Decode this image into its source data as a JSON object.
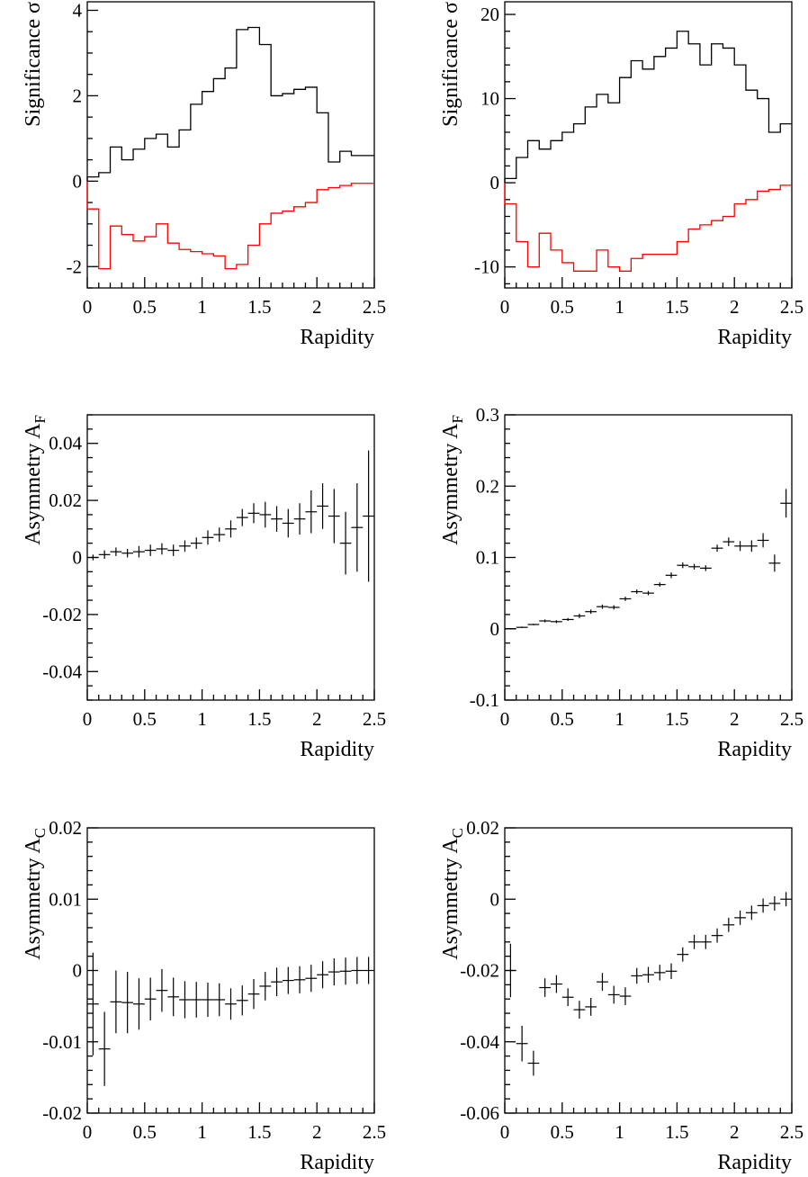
{
  "chart_data": [
    {
      "id": "p1",
      "type": "step",
      "xlabel": "Rapidity",
      "ylabel": "Significance σ",
      "xlim": [
        0,
        2.5
      ],
      "ylim": [
        -2.5,
        4.2
      ],
      "xticks": [
        {
          "v": 0,
          "t": "0"
        },
        {
          "v": 0.5,
          "t": "0.5"
        },
        {
          "v": 1,
          "t": "1"
        },
        {
          "v": 1.5,
          "t": "1.5"
        },
        {
          "v": 2,
          "t": "2"
        },
        {
          "v": 2.5,
          "t": "2.5"
        }
      ],
      "yticks": [
        {
          "v": -2,
          "t": "-2"
        },
        {
          "v": 0,
          "t": "0"
        },
        {
          "v": 2,
          "t": "2"
        },
        {
          "v": 4,
          "t": "4"
        }
      ],
      "y_minor": 0.5,
      "bin_edges": [
        0,
        0.1,
        0.2,
        0.3,
        0.4,
        0.5,
        0.6,
        0.7,
        0.8,
        0.9,
        1.0,
        1.1,
        1.2,
        1.3,
        1.4,
        1.5,
        1.6,
        1.7,
        1.8,
        1.9,
        2.0,
        2.1,
        2.2,
        2.3,
        2.4,
        2.5
      ],
      "series": [
        {
          "color": "#000000",
          "values": [
            0.1,
            0.2,
            0.8,
            0.5,
            0.75,
            1.0,
            1.1,
            0.8,
            1.2,
            1.8,
            2.1,
            2.4,
            2.65,
            3.55,
            3.6,
            3.2,
            2.0,
            2.05,
            2.15,
            2.2,
            1.6,
            0.45,
            0.7,
            0.6,
            0.6
          ]
        },
        {
          "color": "#ff0000",
          "values": [
            -0.65,
            -2.05,
            -1.05,
            -1.25,
            -1.4,
            -1.3,
            -1.0,
            -1.45,
            -1.6,
            -1.65,
            -1.7,
            -1.75,
            -2.05,
            -1.95,
            -1.5,
            -1.0,
            -0.75,
            -0.7,
            -0.6,
            -0.5,
            -0.2,
            -0.15,
            -0.1,
            -0.05,
            -0.05
          ]
        }
      ]
    },
    {
      "id": "p2",
      "type": "step",
      "xlabel": "Rapidity",
      "ylabel": "Significance σ",
      "xlim": [
        0,
        2.5
      ],
      "ylim": [
        -12.5,
        21.5
      ],
      "xticks": [
        {
          "v": 0,
          "t": "0"
        },
        {
          "v": 0.5,
          "t": "0.5"
        },
        {
          "v": 1,
          "t": "1"
        },
        {
          "v": 1.5,
          "t": "1.5"
        },
        {
          "v": 2,
          "t": "2"
        },
        {
          "v": 2.5,
          "t": "2.5"
        }
      ],
      "yticks": [
        {
          "v": -10,
          "t": "-10"
        },
        {
          "v": 0,
          "t": "0"
        },
        {
          "v": 10,
          "t": "10"
        },
        {
          "v": 20,
          "t": "20"
        }
      ],
      "y_minor": 2,
      "bin_edges": [
        0,
        0.1,
        0.2,
        0.3,
        0.4,
        0.5,
        0.6,
        0.7,
        0.8,
        0.9,
        1.0,
        1.1,
        1.2,
        1.3,
        1.4,
        1.5,
        1.6,
        1.7,
        1.8,
        1.9,
        2.0,
        2.1,
        2.2,
        2.3,
        2.4,
        2.5
      ],
      "series": [
        {
          "color": "#000000",
          "values": [
            0.5,
            3.0,
            5.0,
            4.0,
            5.0,
            6.0,
            7.0,
            9.0,
            10.5,
            9.5,
            12.5,
            14.5,
            13.5,
            15.0,
            16.0,
            18.0,
            16.5,
            14.0,
            16.5,
            16.0,
            14.0,
            11.0,
            10.0,
            6.0,
            7.0
          ]
        },
        {
          "color": "#ff0000",
          "values": [
            -2.5,
            -7.0,
            -10.0,
            -6.0,
            -8.0,
            -9.5,
            -10.5,
            -10.5,
            -8.0,
            -10.0,
            -10.5,
            -9.0,
            -8.5,
            -8.5,
            -8.5,
            -7.0,
            -5.5,
            -5.0,
            -4.5,
            -4.0,
            -2.5,
            -2.0,
            -1.0,
            -0.8,
            -0.3
          ]
        }
      ]
    },
    {
      "id": "p3",
      "type": "errorbar",
      "xlabel": "Rapidity",
      "ylabel": "Asymmetry A",
      "ylabel_sub": "F",
      "xlim": [
        0,
        2.5
      ],
      "ylim": [
        -0.05,
        0.05
      ],
      "xticks": [
        {
          "v": 0,
          "t": "0"
        },
        {
          "v": 0.5,
          "t": "0.5"
        },
        {
          "v": 1,
          "t": "1"
        },
        {
          "v": 1.5,
          "t": "1.5"
        },
        {
          "v": 2,
          "t": "2"
        },
        {
          "v": 2.5,
          "t": "2.5"
        }
      ],
      "yticks": [
        {
          "v": -0.04,
          "t": "-0.04"
        },
        {
          "v": -0.02,
          "t": "-0.02"
        },
        {
          "v": 0,
          "t": "0"
        },
        {
          "v": 0.02,
          "t": "0.02"
        },
        {
          "v": 0.04,
          "t": "0.04"
        }
      ],
      "y_minor": 0.005,
      "points": [
        {
          "x": 0.05,
          "y": 0.0,
          "err": 0.001
        },
        {
          "x": 0.15,
          "y": 0.001,
          "err": 0.0015
        },
        {
          "x": 0.25,
          "y": 0.002,
          "err": 0.0015
        },
        {
          "x": 0.35,
          "y": 0.0015,
          "err": 0.0015
        },
        {
          "x": 0.45,
          "y": 0.002,
          "err": 0.002
        },
        {
          "x": 0.55,
          "y": 0.0025,
          "err": 0.002
        },
        {
          "x": 0.65,
          "y": 0.003,
          "err": 0.002
        },
        {
          "x": 0.75,
          "y": 0.0025,
          "err": 0.002
        },
        {
          "x": 0.85,
          "y": 0.004,
          "err": 0.002
        },
        {
          "x": 0.95,
          "y": 0.005,
          "err": 0.002
        },
        {
          "x": 1.05,
          "y": 0.007,
          "err": 0.0025
        },
        {
          "x": 1.15,
          "y": 0.008,
          "err": 0.0025
        },
        {
          "x": 1.25,
          "y": 0.01,
          "err": 0.003
        },
        {
          "x": 1.35,
          "y": 0.014,
          "err": 0.003
        },
        {
          "x": 1.45,
          "y": 0.0155,
          "err": 0.0035
        },
        {
          "x": 1.55,
          "y": 0.015,
          "err": 0.0045
        },
        {
          "x": 1.65,
          "y": 0.0135,
          "err": 0.0045
        },
        {
          "x": 1.75,
          "y": 0.012,
          "err": 0.005
        },
        {
          "x": 1.85,
          "y": 0.0135,
          "err": 0.0055
        },
        {
          "x": 1.95,
          "y": 0.016,
          "err": 0.0075
        },
        {
          "x": 2.05,
          "y": 0.018,
          "err": 0.008
        },
        {
          "x": 2.15,
          "y": 0.0145,
          "err": 0.0095
        },
        {
          "x": 2.25,
          "y": 0.005,
          "err": 0.011
        },
        {
          "x": 2.35,
          "y": 0.0105,
          "err": 0.0155
        },
        {
          "x": 2.45,
          "y": 0.0145,
          "err": 0.023
        }
      ]
    },
    {
      "id": "p4",
      "type": "errorbar",
      "xlabel": "Rapidity",
      "ylabel": "Asymmetry A",
      "ylabel_sub": "F",
      "xlim": [
        0,
        2.5
      ],
      "ylim": [
        -0.1,
        0.3
      ],
      "xticks": [
        {
          "v": 0,
          "t": "0"
        },
        {
          "v": 0.5,
          "t": "0.5"
        },
        {
          "v": 1,
          "t": "1"
        },
        {
          "v": 1.5,
          "t": "1.5"
        },
        {
          "v": 2,
          "t": "2"
        },
        {
          "v": 2.5,
          "t": "2.5"
        }
      ],
      "yticks": [
        {
          "v": -0.1,
          "t": "-0.1"
        },
        {
          "v": 0,
          "t": "0"
        },
        {
          "v": 0.1,
          "t": "0.1"
        },
        {
          "v": 0.2,
          "t": "0.2"
        },
        {
          "v": 0.3,
          "t": "0.3"
        }
      ],
      "y_minor": 0.02,
      "points": [
        {
          "x": 0.05,
          "y": 0.0,
          "err": 0.001
        },
        {
          "x": 0.15,
          "y": 0.002,
          "err": 0.001
        },
        {
          "x": 0.25,
          "y": 0.006,
          "err": 0.001
        },
        {
          "x": 0.35,
          "y": 0.011,
          "err": 0.002
        },
        {
          "x": 0.45,
          "y": 0.01,
          "err": 0.002
        },
        {
          "x": 0.55,
          "y": 0.013,
          "err": 0.002
        },
        {
          "x": 0.65,
          "y": 0.018,
          "err": 0.003
        },
        {
          "x": 0.75,
          "y": 0.024,
          "err": 0.003
        },
        {
          "x": 0.85,
          "y": 0.031,
          "err": 0.003
        },
        {
          "x": 0.95,
          "y": 0.03,
          "err": 0.003
        },
        {
          "x": 1.05,
          "y": 0.042,
          "err": 0.003
        },
        {
          "x": 1.15,
          "y": 0.052,
          "err": 0.003
        },
        {
          "x": 1.25,
          "y": 0.05,
          "err": 0.003
        },
        {
          "x": 1.35,
          "y": 0.062,
          "err": 0.003
        },
        {
          "x": 1.45,
          "y": 0.075,
          "err": 0.004
        },
        {
          "x": 1.55,
          "y": 0.089,
          "err": 0.004
        },
        {
          "x": 1.65,
          "y": 0.087,
          "err": 0.004
        },
        {
          "x": 1.75,
          "y": 0.085,
          "err": 0.004
        },
        {
          "x": 1.85,
          "y": 0.113,
          "err": 0.005
        },
        {
          "x": 1.95,
          "y": 0.122,
          "err": 0.006
        },
        {
          "x": 2.05,
          "y": 0.116,
          "err": 0.007
        },
        {
          "x": 2.15,
          "y": 0.116,
          "err": 0.008
        },
        {
          "x": 2.25,
          "y": 0.124,
          "err": 0.01
        },
        {
          "x": 2.35,
          "y": 0.092,
          "err": 0.012
        },
        {
          "x": 2.45,
          "y": 0.176,
          "err": 0.02
        }
      ]
    },
    {
      "id": "p5",
      "type": "errorbar",
      "xlabel": "Rapidity",
      "ylabel": "Asymmetry A",
      "ylabel_sub": "C",
      "xlim": [
        0,
        2.5
      ],
      "ylim": [
        -0.02,
        0.02
      ],
      "xticks": [
        {
          "v": 0,
          "t": "0"
        },
        {
          "v": 0.5,
          "t": "0.5"
        },
        {
          "v": 1,
          "t": "1"
        },
        {
          "v": 1.5,
          "t": "1.5"
        },
        {
          "v": 2,
          "t": "2"
        },
        {
          "v": 2.5,
          "t": "2.5"
        }
      ],
      "yticks": [
        {
          "v": -0.02,
          "t": "-0.02"
        },
        {
          "v": -0.01,
          "t": "-0.01"
        },
        {
          "v": 0,
          "t": "0"
        },
        {
          "v": 0.01,
          "t": "0.01"
        },
        {
          "v": 0.02,
          "t": "0.02"
        }
      ],
      "y_minor": 0.002,
      "points": [
        {
          "x": 0.05,
          "y": -0.0047,
          "err": 0.0072
        },
        {
          "x": 0.15,
          "y": -0.011,
          "err": 0.0052
        },
        {
          "x": 0.25,
          "y": -0.0044,
          "err": 0.0044
        },
        {
          "x": 0.35,
          "y": -0.0045,
          "err": 0.0043
        },
        {
          "x": 0.45,
          "y": -0.0047,
          "err": 0.0036
        },
        {
          "x": 0.55,
          "y": -0.004,
          "err": 0.003
        },
        {
          "x": 0.65,
          "y": -0.0028,
          "err": 0.003
        },
        {
          "x": 0.75,
          "y": -0.0037,
          "err": 0.0027
        },
        {
          "x": 0.85,
          "y": -0.0041,
          "err": 0.0026
        },
        {
          "x": 0.95,
          "y": -0.0041,
          "err": 0.0025
        },
        {
          "x": 1.05,
          "y": -0.0041,
          "err": 0.0024
        },
        {
          "x": 1.15,
          "y": -0.0041,
          "err": 0.0023
        },
        {
          "x": 1.25,
          "y": -0.0047,
          "err": 0.0022
        },
        {
          "x": 1.35,
          "y": -0.0042,
          "err": 0.0021
        },
        {
          "x": 1.45,
          "y": -0.0033,
          "err": 0.0021
        },
        {
          "x": 1.55,
          "y": -0.0022,
          "err": 0.002
        },
        {
          "x": 1.65,
          "y": -0.0016,
          "err": 0.002
        },
        {
          "x": 1.75,
          "y": -0.0014,
          "err": 0.0019
        },
        {
          "x": 1.85,
          "y": -0.0013,
          "err": 0.0019
        },
        {
          "x": 1.95,
          "y": -0.0011,
          "err": 0.0019
        },
        {
          "x": 2.05,
          "y": -0.0006,
          "err": 0.0019
        },
        {
          "x": 2.15,
          "y": -0.0002,
          "err": 0.0019
        },
        {
          "x": 2.25,
          "y": -0.0001,
          "err": 0.0019
        },
        {
          "x": 2.35,
          "y": 0.0,
          "err": 0.0019
        },
        {
          "x": 2.45,
          "y": 0.0,
          "err": 0.0019
        }
      ]
    },
    {
      "id": "p6",
      "type": "errorbar",
      "xlabel": "Rapidity",
      "ylabel": "Asymmetry A",
      "ylabel_sub": "C",
      "xlim": [
        0,
        2.5
      ],
      "ylim": [
        -0.06,
        0.02
      ],
      "xticks": [
        {
          "v": 0,
          "t": "0"
        },
        {
          "v": 0.5,
          "t": "0.5"
        },
        {
          "v": 1,
          "t": "1"
        },
        {
          "v": 1.5,
          "t": "1.5"
        },
        {
          "v": 2,
          "t": "2"
        },
        {
          "v": 2.5,
          "t": "2.5"
        }
      ],
      "yticks": [
        {
          "v": -0.06,
          "t": "-0.06"
        },
        {
          "v": -0.04,
          "t": "-0.04"
        },
        {
          "v": -0.02,
          "t": "-0.02"
        },
        {
          "v": 0,
          "t": "0"
        },
        {
          "v": 0.02,
          "t": "0.02"
        }
      ],
      "y_minor": 0.004,
      "points": [
        {
          "x": 0.05,
          "y": -0.02,
          "err": 0.0075
        },
        {
          "x": 0.15,
          "y": -0.0405,
          "err": 0.005
        },
        {
          "x": 0.25,
          "y": -0.046,
          "err": 0.0035
        },
        {
          "x": 0.35,
          "y": -0.0248,
          "err": 0.0026
        },
        {
          "x": 0.45,
          "y": -0.0238,
          "err": 0.0025
        },
        {
          "x": 0.55,
          "y": -0.0275,
          "err": 0.0025
        },
        {
          "x": 0.65,
          "y": -0.031,
          "err": 0.0025
        },
        {
          "x": 0.75,
          "y": -0.0302,
          "err": 0.0025
        },
        {
          "x": 0.85,
          "y": -0.0232,
          "err": 0.0025
        },
        {
          "x": 0.95,
          "y": -0.0268,
          "err": 0.0025
        },
        {
          "x": 1.05,
          "y": -0.0272,
          "err": 0.0025
        },
        {
          "x": 1.15,
          "y": -0.0215,
          "err": 0.0022
        },
        {
          "x": 1.25,
          "y": -0.0212,
          "err": 0.0022
        },
        {
          "x": 1.35,
          "y": -0.0206,
          "err": 0.0022
        },
        {
          "x": 1.45,
          "y": -0.0202,
          "err": 0.0022
        },
        {
          "x": 1.55,
          "y": -0.0155,
          "err": 0.002
        },
        {
          "x": 1.65,
          "y": -0.012,
          "err": 0.002
        },
        {
          "x": 1.75,
          "y": -0.012,
          "err": 0.002
        },
        {
          "x": 1.85,
          "y": -0.0102,
          "err": 0.002
        },
        {
          "x": 1.95,
          "y": -0.0072,
          "err": 0.002
        },
        {
          "x": 2.05,
          "y": -0.0052,
          "err": 0.002
        },
        {
          "x": 2.15,
          "y": -0.0038,
          "err": 0.002
        },
        {
          "x": 2.25,
          "y": -0.0018,
          "err": 0.002
        },
        {
          "x": 2.35,
          "y": -0.0012,
          "err": 0.002
        },
        {
          "x": 2.45,
          "y": 0.0,
          "err": 0.002
        }
      ]
    }
  ]
}
